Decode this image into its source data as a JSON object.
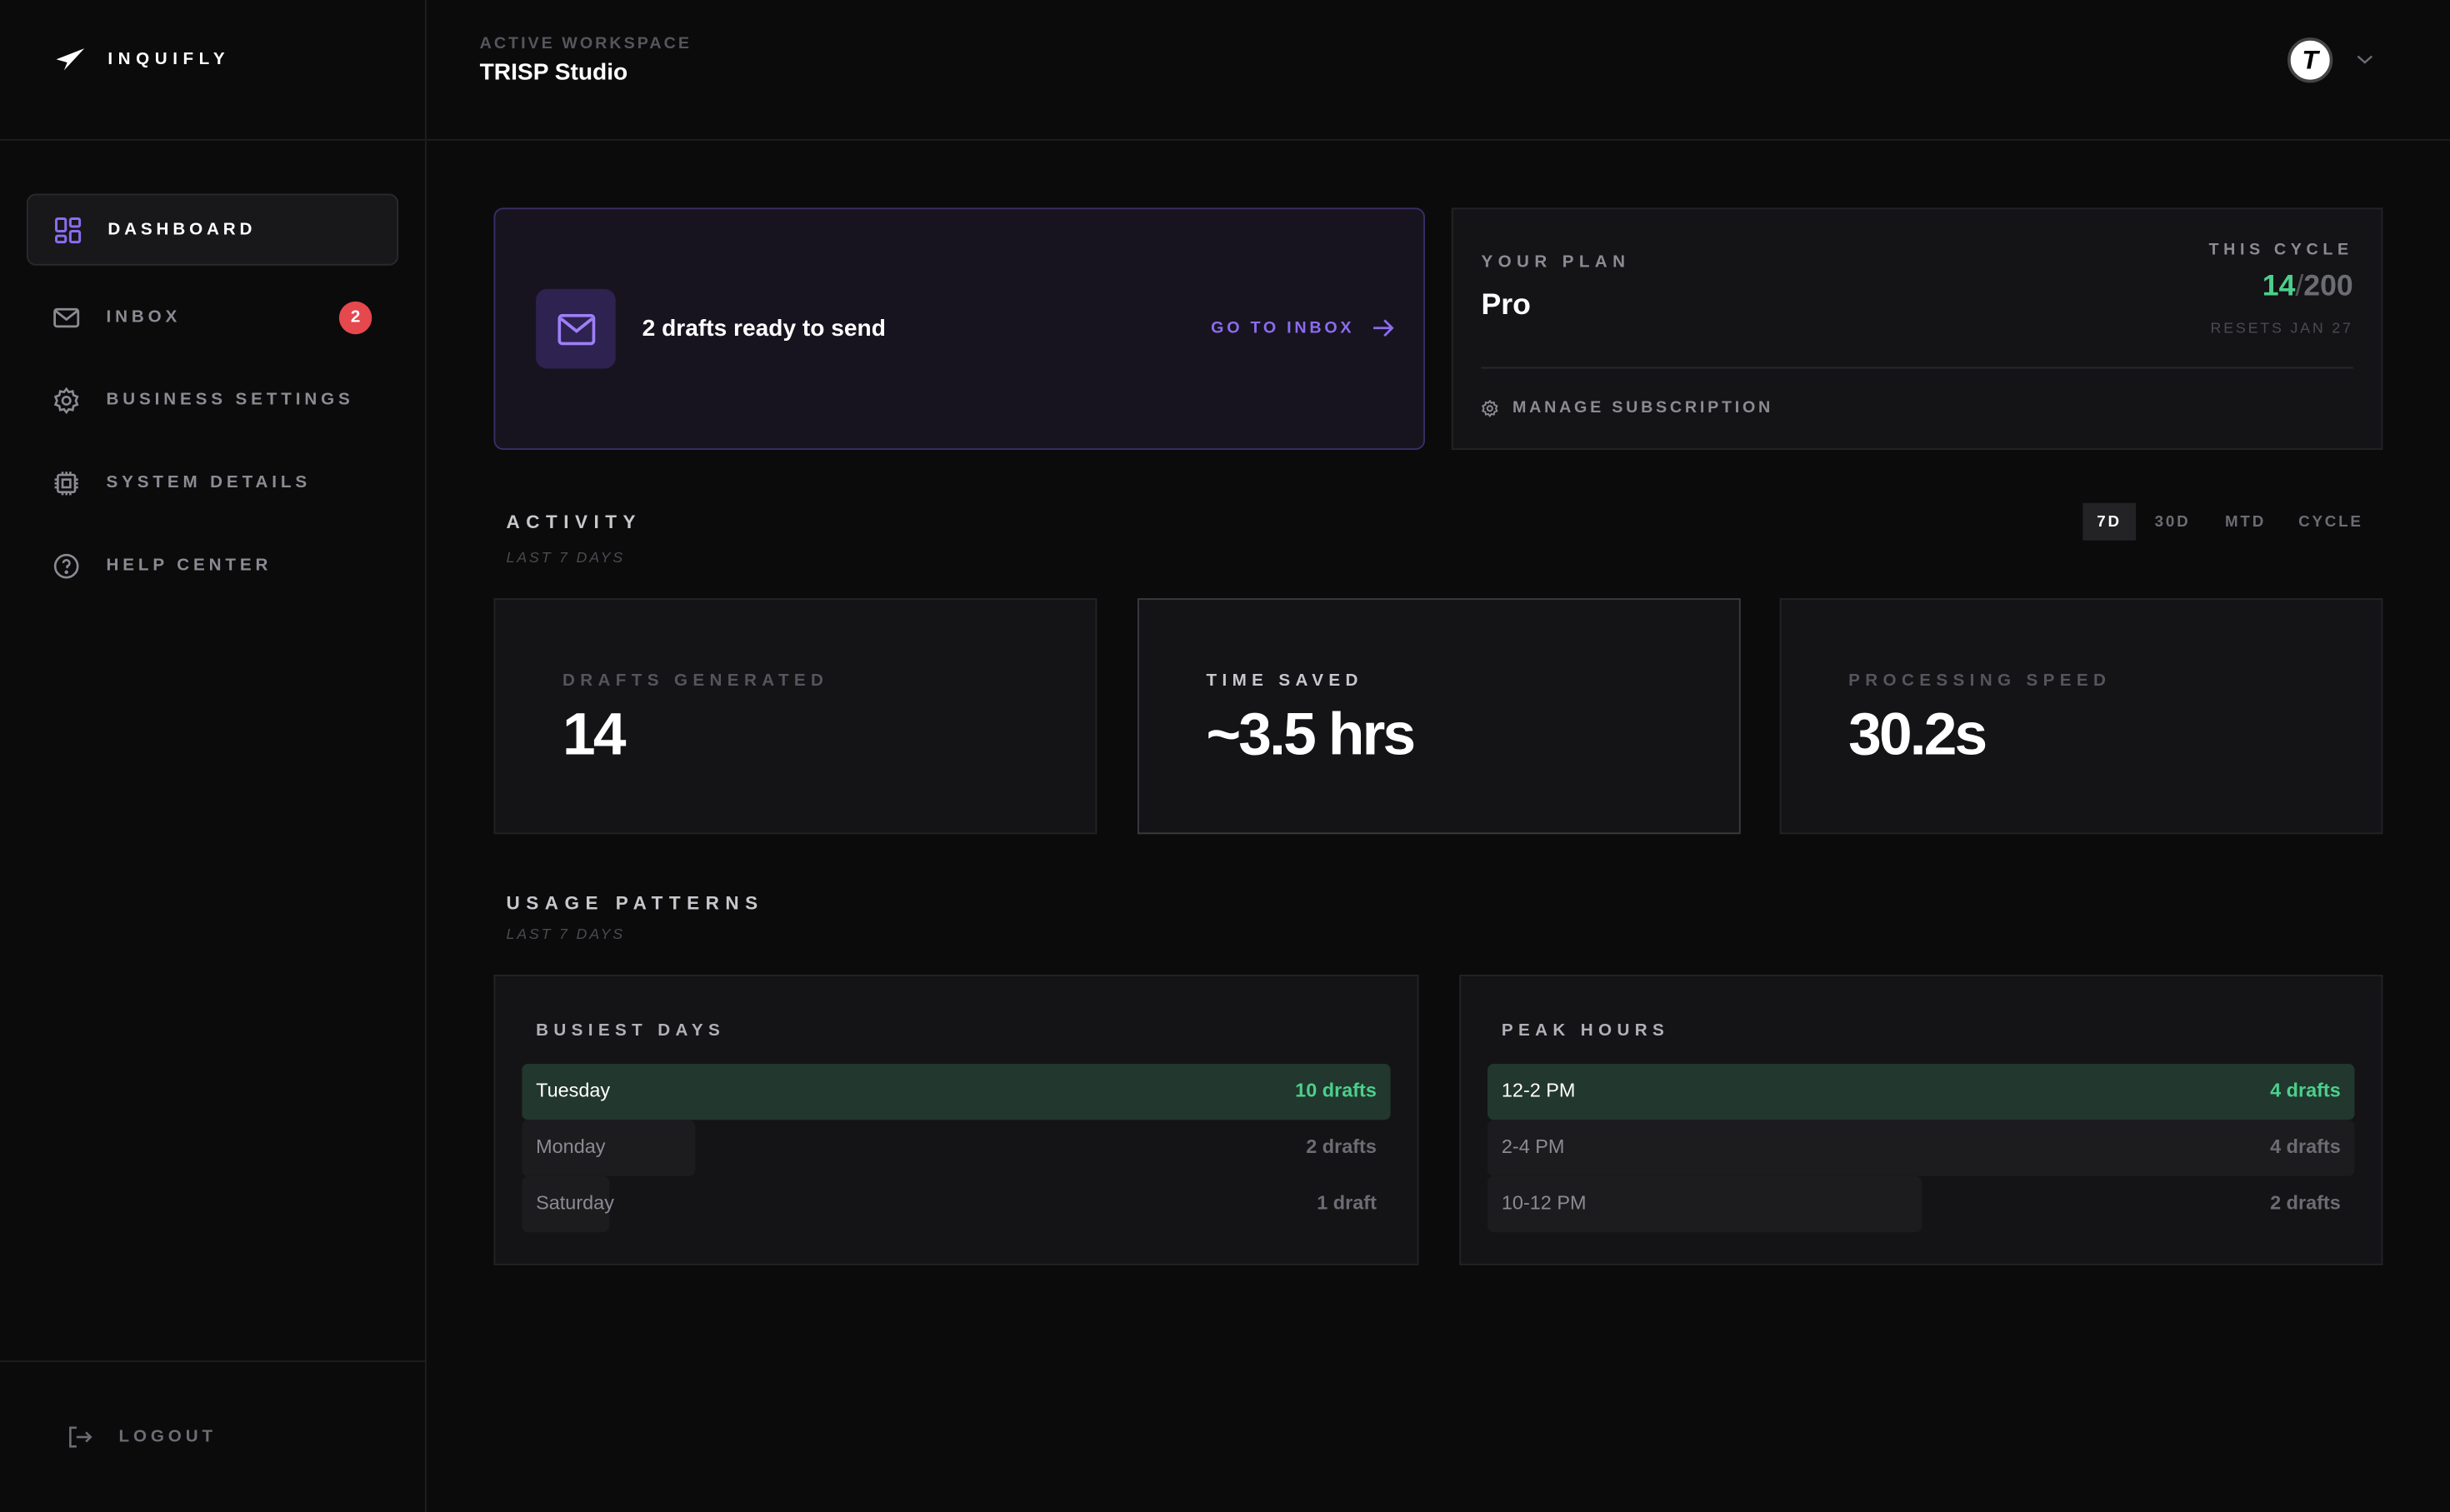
{
  "brand": {
    "name": "INQUIFLY"
  },
  "header": {
    "workspace_label": "ACTIVE WORKSPACE",
    "workspace_name": "TRISP Studio",
    "avatar_letter": "T"
  },
  "sidebar": {
    "items": [
      {
        "label": "DASHBOARD",
        "icon": "grid-icon",
        "active": true
      },
      {
        "label": "INBOX",
        "icon": "mail-icon",
        "badge": "2"
      },
      {
        "label": "BUSINESS SETTINGS",
        "icon": "gear-icon"
      },
      {
        "label": "SYSTEM DETAILS",
        "icon": "chip-icon"
      },
      {
        "label": "HELP CENTER",
        "icon": "help-icon"
      }
    ],
    "logout": "LOGOUT"
  },
  "banner": {
    "text": "2 drafts ready to send",
    "action": "GO TO INBOX"
  },
  "plan": {
    "label": "YOUR PLAN",
    "name": "Pro",
    "cycle_label": "THIS CYCLE",
    "used": "14",
    "sep": "/",
    "limit": "200",
    "resets": "RESETS JAN 27",
    "manage": "MANAGE SUBSCRIPTION"
  },
  "activity": {
    "title": "ACTIVITY",
    "subtitle": "LAST 7 DAYS",
    "ranges": [
      "7D",
      "30D",
      "MTD",
      "CYCLE"
    ],
    "selected_range": "7D",
    "stats": [
      {
        "label": "DRAFTS GENERATED",
        "value": "14"
      },
      {
        "label": "TIME SAVED",
        "value": "~3.5 hrs"
      },
      {
        "label": "PROCESSING SPEED",
        "value": "30.2s"
      }
    ]
  },
  "usage": {
    "title": "USAGE PATTERNS",
    "subtitle": "LAST 7 DAYS",
    "busiest_days": {
      "title": "BUSIEST DAYS",
      "rows": [
        {
          "label": "Tuesday",
          "value": "10 drafts",
          "count": 10
        },
        {
          "label": "Monday",
          "value": "2 drafts",
          "count": 2
        },
        {
          "label": "Saturday",
          "value": "1 draft",
          "count": 1
        }
      ]
    },
    "peak_hours": {
      "title": "PEAK HOURS",
      "rows": [
        {
          "label": "12-2 PM",
          "value": "4 drafts",
          "count": 4
        },
        {
          "label": "2-4 PM",
          "value": "4 drafts",
          "count": 4
        },
        {
          "label": "10-12 PM",
          "value": "2 drafts",
          "count": 2
        }
      ]
    }
  },
  "colors": {
    "accent": "#8b6cf0",
    "success": "#4ccf8c",
    "badge": "#e5484d"
  }
}
